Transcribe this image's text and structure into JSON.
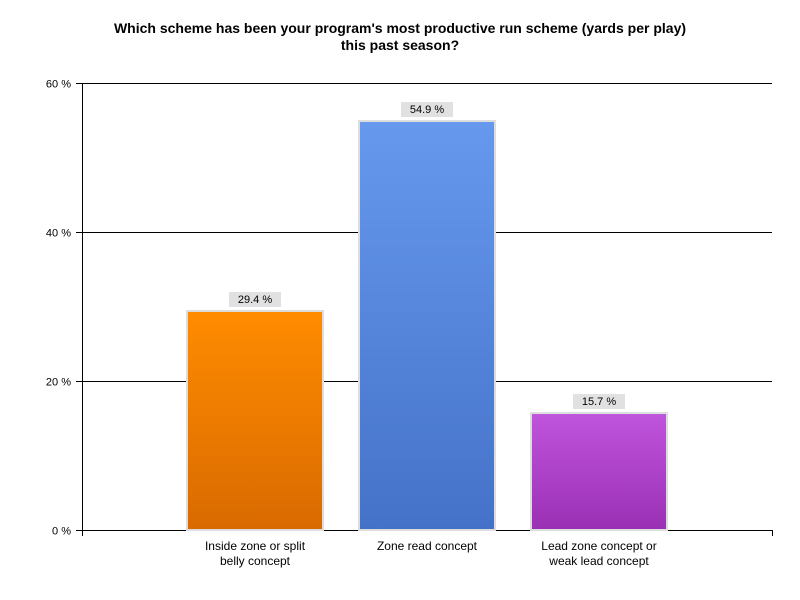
{
  "chart_data": {
    "type": "bar",
    "title_lines": [
      "Which scheme has been your program's most productive run scheme (yards per play)",
      "this past season?"
    ],
    "categories": [
      [
        "Inside zone or split",
        "belly concept"
      ],
      [
        "Zone read concept"
      ],
      [
        "Lead zone concept or",
        "weak lead concept"
      ]
    ],
    "values": [
      29.4,
      54.9,
      15.7
    ],
    "data_labels": [
      "29.4 %",
      "54.9 %",
      "15.7 %"
    ],
    "bar_colors": [
      [
        "#ff8c00",
        "#d96a00"
      ],
      [
        "#6699ee",
        "#4472c8"
      ],
      [
        "#c055dd",
        "#9a30b4"
      ]
    ],
    "ylim": [
      0,
      60
    ],
    "yticks": [
      0,
      20,
      40,
      60
    ],
    "ytick_labels": [
      "0 %",
      "20 %",
      "40 %",
      "60 %"
    ],
    "grid": true,
    "legend": "none"
  }
}
